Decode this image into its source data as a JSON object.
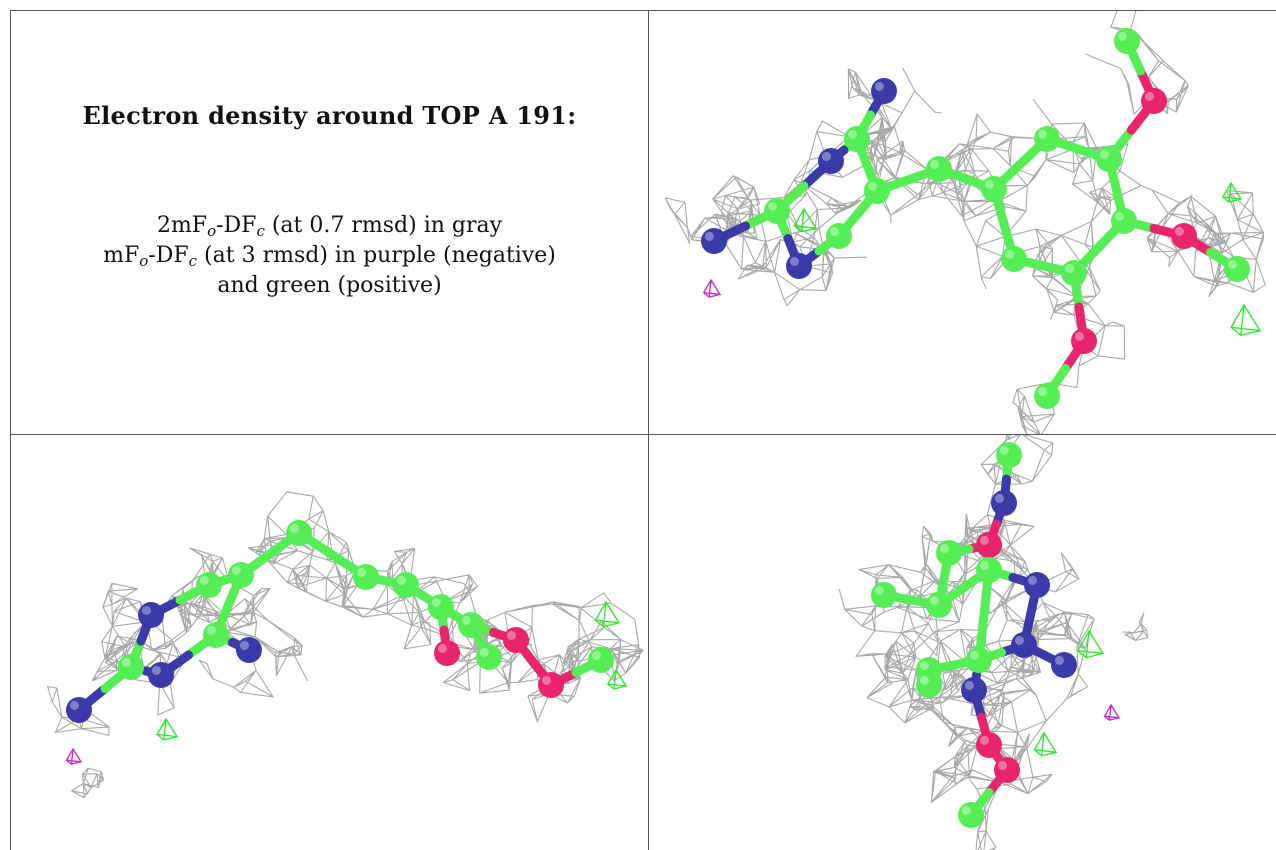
{
  "caption": {
    "title": "Electron density around TOP A 191:",
    "line1": {
      "prefix": "2mF",
      "sub1": "o",
      "mid": "-DF",
      "sub2": "c",
      "suffix": " (at 0.7 rmsd) in gray"
    },
    "line2": {
      "prefix": "mF",
      "sub1": "o",
      "mid": "-DF",
      "sub2": "c",
      "suffix": " (at 3 rmsd) in purple (negative)"
    },
    "line3": "and green (positive)"
  },
  "colors": {
    "carbon": "#55ee55",
    "nitrogen": "#3a3aa8",
    "oxygen": "#e8246a",
    "mesh_2fofc": "#a8a8a8",
    "mesh_negative": "#cc22cc",
    "mesh_positive": "#22ee22",
    "grid_lines": "#555555"
  },
  "views": [
    {
      "name": "view-top-right",
      "orientation": "face-on"
    },
    {
      "name": "view-bottom-left",
      "orientation": "side-on"
    },
    {
      "name": "view-bottom-right",
      "orientation": "end-on"
    }
  ]
}
